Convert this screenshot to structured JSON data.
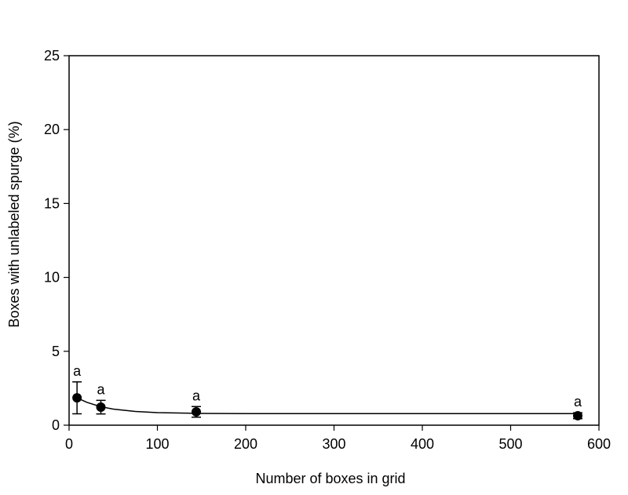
{
  "chart_data": {
    "type": "scatter",
    "x_label": "Number of boxes in grid",
    "y_label": "Boxes with unlabeled spurge (%)",
    "xlim": [
      0,
      600
    ],
    "ylim": [
      0,
      25
    ],
    "xticks": [
      0,
      100,
      200,
      300,
      400,
      500,
      600
    ],
    "yticks": [
      0,
      5,
      10,
      15,
      20,
      25
    ],
    "series": [
      {
        "color": "#000000",
        "x": [
          9,
          36,
          144,
          576
        ],
        "values": [
          1.85,
          1.22,
          0.9,
          0.64
        ],
        "errors": [
          1.08,
          0.46,
          0.36,
          0.2
        ],
        "annotations": [
          "a",
          "a",
          "a",
          "a"
        ]
      }
    ],
    "curve": {
      "color": "#000000",
      "x": [
        9,
        20,
        36,
        50,
        75,
        100,
        144,
        200,
        300,
        400,
        576
      ],
      "y": [
        1.85,
        1.55,
        1.25,
        1.09,
        0.93,
        0.85,
        0.8,
        0.78,
        0.78,
        0.78,
        0.78
      ]
    }
  }
}
